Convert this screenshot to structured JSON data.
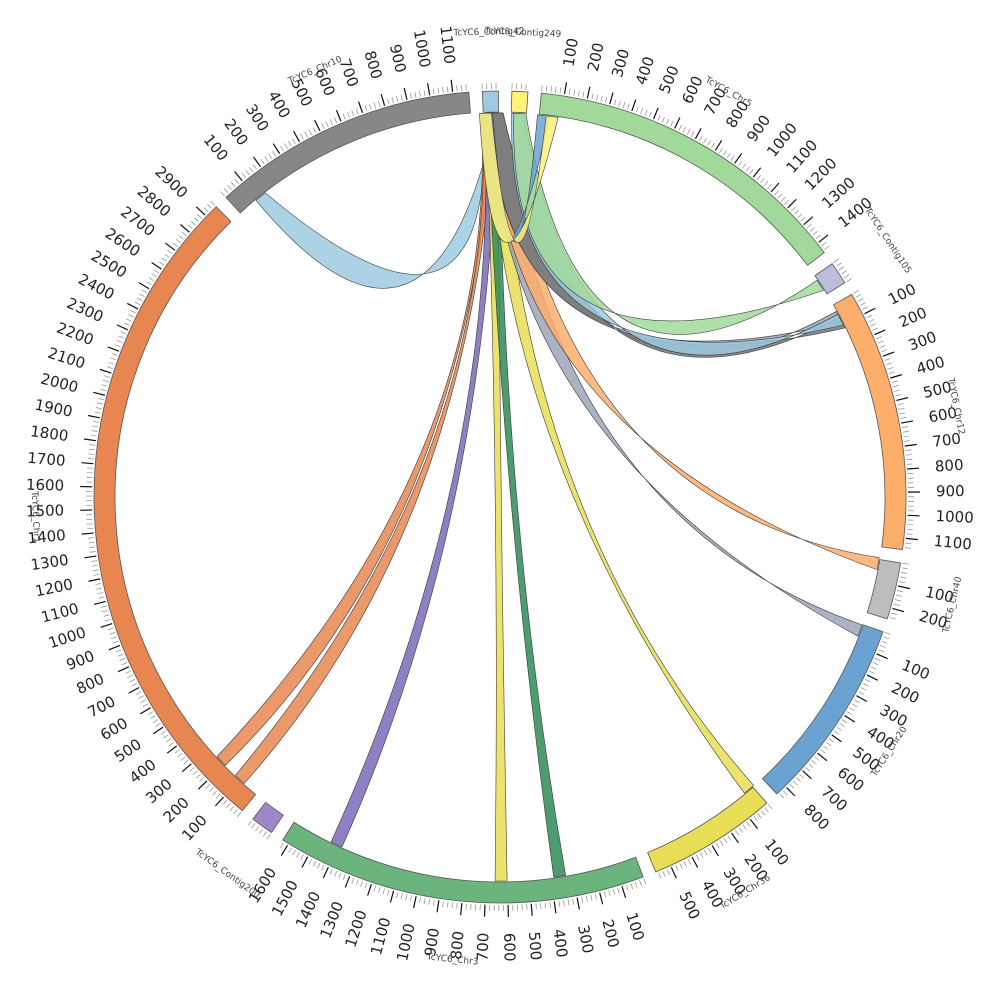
{
  "diagram": {
    "type": "circos",
    "segments": [
      {
        "name": "TcYC6_Contig42",
        "length": 70,
        "color": "#9ecae1",
        "tick_step": 0
      },
      {
        "name": "TcYC6_Contig249",
        "length": 70,
        "color": "#fff17a",
        "tick_step": 0
      },
      {
        "name": "TcYC6_Chr5",
        "length": 1450,
        "color": "#a1d99b",
        "tick_step": 100
      },
      {
        "name": "TcYC6_Contig105",
        "length": 100,
        "color": "#bcbddc",
        "tick_step": 0
      },
      {
        "name": "TcYC6_Chr12",
        "length": 1150,
        "color": "#fdae6b",
        "tick_step": 100
      },
      {
        "name": "TcYC6_Chr40",
        "length": 250,
        "color": "#bdbdbd",
        "tick_step": 100
      },
      {
        "name": "TcYC6_Chr20",
        "length": 850,
        "color": "#6aa3d1",
        "tick_step": 100
      },
      {
        "name": "TcYC6_Chr36",
        "length": 570,
        "color": "#e8de55",
        "tick_step": 100
      },
      {
        "name": "TcYC6_Chr3",
        "length": 1630,
        "color": "#6bb47e",
        "tick_step": 100
      },
      {
        "name": "TcYC6_Contig200",
        "length": 100,
        "color": "#9e88c8",
        "tick_step": 0
      },
      {
        "name": "TcYC6_Chr1",
        "length": 2960,
        "color": "#e88651",
        "tick_step": 100
      },
      {
        "name": "TcYC6_Chr10",
        "length": 1170,
        "color": "#878787",
        "tick_step": 100
      }
    ],
    "links": [
      {
        "from": "TcYC6_Contig42",
        "from_pos": 30,
        "to": "TcYC6_Chr10",
        "to_pos": 120,
        "color": "#9ecae1"
      },
      {
        "from": "TcYC6_Contig42",
        "from_pos": 20,
        "to": "TcYC6_Chr1",
        "to_pos": 220,
        "color": "#e88651"
      },
      {
        "from": "TcYC6_Contig42",
        "from_pos": 25,
        "to": "TcYC6_Chr1",
        "to_pos": 100,
        "color": "#e88651"
      },
      {
        "from": "TcYC6_Contig42",
        "from_pos": 35,
        "to": "TcYC6_Chr3",
        "to_pos": 1410,
        "color": "#7b68b8"
      },
      {
        "from": "TcYC6_Contig42",
        "from_pos": 40,
        "to": "TcYC6_Chr3",
        "to_pos": 630,
        "color": "#e8de55"
      },
      {
        "from": "TcYC6_Contig42",
        "from_pos": 45,
        "to": "TcYC6_Chr3",
        "to_pos": 360,
        "color": "#2e8b57"
      },
      {
        "from": "TcYC6_Contig42",
        "from_pos": 50,
        "to": "TcYC6_Chr36",
        "to_pos": 20,
        "color": "#e8de55"
      },
      {
        "from": "TcYC6_Contig42",
        "from_pos": 55,
        "to": "TcYC6_Chr20",
        "to_pos": 30,
        "color": "#9ea3b8"
      },
      {
        "from": "TcYC6_Contig42",
        "from_pos": 60,
        "to": "TcYC6_Chr40",
        "to_pos": 20,
        "color": "#fdae6b"
      },
      {
        "from": "TcYC6_Contig42",
        "from_pos": 62,
        "to": "TcYC6_Chr12",
        "to_pos": 60,
        "color": "#9ea3b8"
      },
      {
        "from": "TcYC6_Contig42",
        "from_pos": 64,
        "to": "TcYC6_Chr12",
        "to_pos": 90,
        "color": "#777777"
      },
      {
        "from": "TcYC6_Contig249",
        "from_pos": 30,
        "to": "TcYC6_Chr12",
        "to_pos": 75,
        "color": "#9ecae1"
      },
      {
        "from": "TcYC6_Contig249",
        "from_pos": 40,
        "to": "TcYC6_Contig105",
        "to_pos": 50,
        "color": "#a1d99b"
      },
      {
        "from": "TcYC6_Chr5",
        "from_pos": 20,
        "to": "TcYC6_Contig42",
        "to_pos": 15,
        "color": "#6aa3d1"
      },
      {
        "from": "TcYC6_Chr5",
        "from_pos": 60,
        "to": "TcYC6_Contig42",
        "to_pos": 10,
        "color": "#fff17a"
      }
    ]
  }
}
